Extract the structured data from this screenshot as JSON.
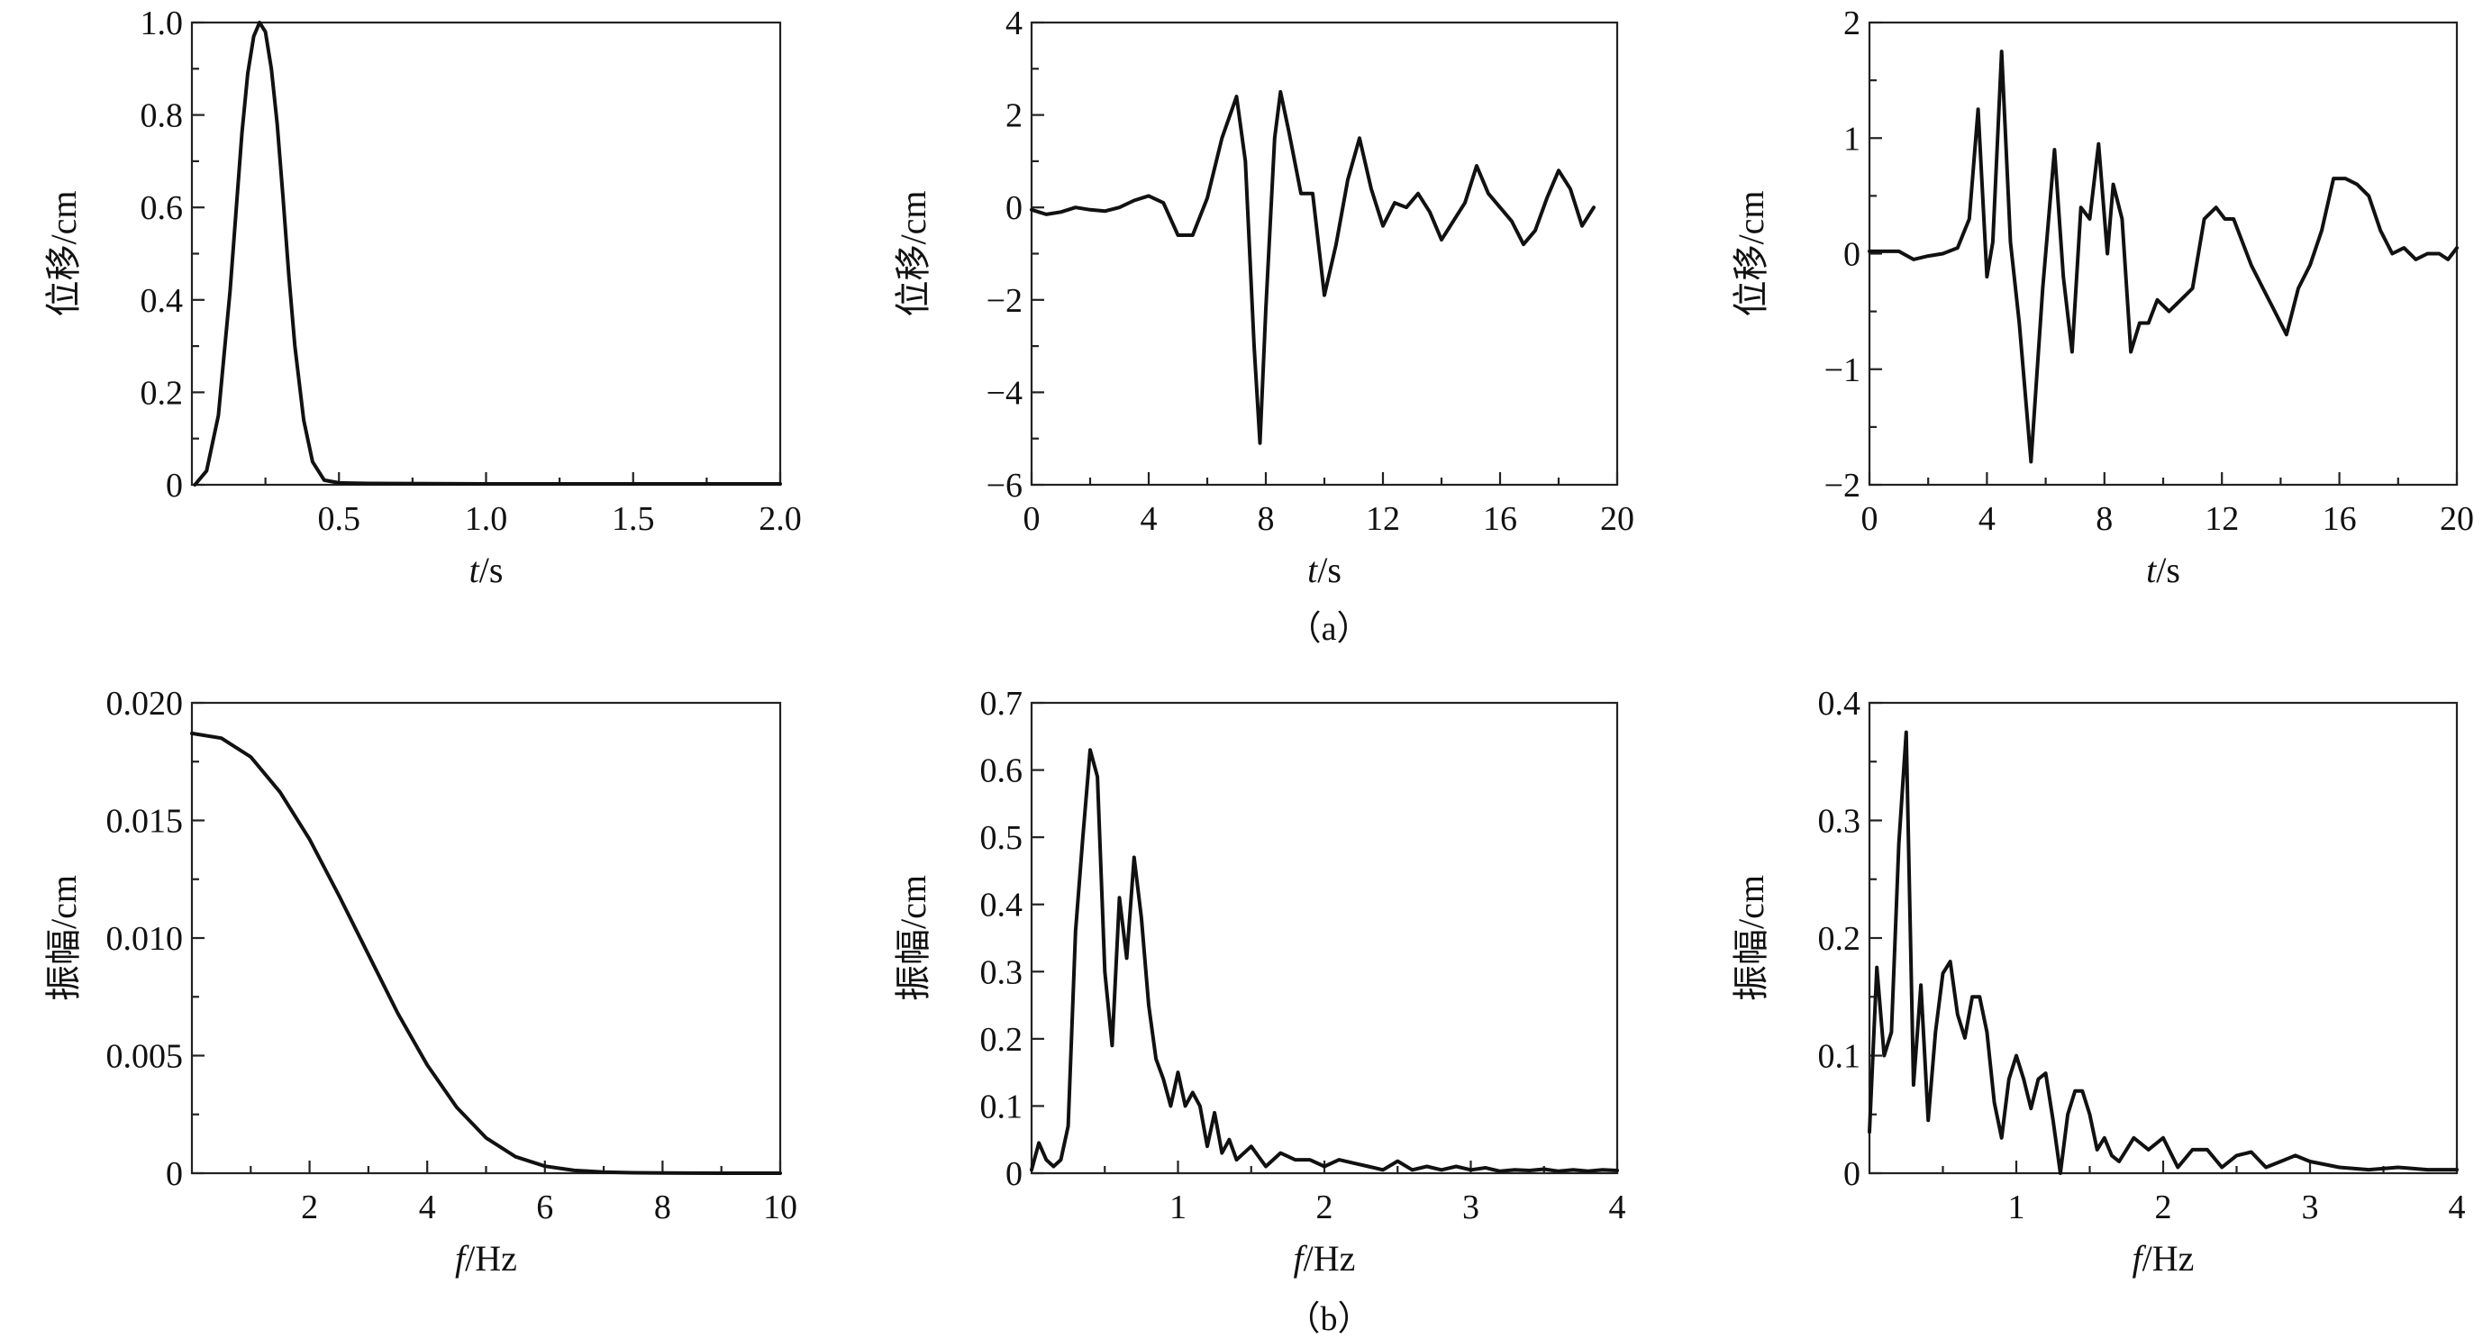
{
  "captions": {
    "a": "（a）",
    "b": "（b）"
  },
  "chart_data": [
    {
      "type": "line",
      "xlabel_var": "t",
      "xlabel_unit": "/s",
      "ylabel": "位移/cm",
      "xlim": [
        0,
        2.0
      ],
      "ylim": [
        0,
        1.0
      ],
      "xticks": [
        {
          "v": 0.5,
          "label": "0.5"
        },
        {
          "v": 1.0,
          "label": "1.0"
        },
        {
          "v": 1.5,
          "label": "1.5"
        },
        {
          "v": 2.0,
          "label": "2.0"
        }
      ],
      "xminor": [
        0.25,
        0.75,
        1.25,
        1.75
      ],
      "yticks": [
        {
          "v": 0,
          "label": "0"
        },
        {
          "v": 0.2,
          "label": "0.2"
        },
        {
          "v": 0.4,
          "label": "0.4"
        },
        {
          "v": 0.6,
          "label": "0.6"
        },
        {
          "v": 0.8,
          "label": "0.8"
        },
        {
          "v": 1.0,
          "label": "1.0"
        }
      ],
      "yminor": [
        0.1,
        0.3,
        0.5,
        0.7,
        0.9
      ],
      "x": [
        0.01,
        0.05,
        0.09,
        0.13,
        0.17,
        0.19,
        0.21,
        0.23,
        0.25,
        0.27,
        0.29,
        0.31,
        0.33,
        0.35,
        0.38,
        0.41,
        0.45,
        0.5,
        0.6,
        1.0,
        1.5,
        2.0
      ],
      "y": [
        0.0,
        0.03,
        0.15,
        0.42,
        0.76,
        0.89,
        0.97,
        1.0,
        0.98,
        0.9,
        0.78,
        0.62,
        0.45,
        0.3,
        0.14,
        0.05,
        0.01,
        0.004,
        0.003,
        0.002,
        0.002,
        0.002
      ]
    },
    {
      "type": "line",
      "xlabel_var": "t",
      "xlabel_unit": "/s",
      "ylabel": "位移/cm",
      "xlim": [
        0,
        20
      ],
      "ylim": [
        -6,
        4
      ],
      "xticks": [
        {
          "v": 0,
          "label": "0"
        },
        {
          "v": 4,
          "label": "4"
        },
        {
          "v": 8,
          "label": "8"
        },
        {
          "v": 12,
          "label": "12"
        },
        {
          "v": 16,
          "label": "16"
        },
        {
          "v": 20,
          "label": "20"
        }
      ],
      "xminor": [
        2,
        6,
        10,
        14,
        18
      ],
      "yticks": [
        {
          "v": -6,
          "label": "−6"
        },
        {
          "v": -4,
          "label": "−4"
        },
        {
          "v": -2,
          "label": "−2"
        },
        {
          "v": 0,
          "label": "0"
        },
        {
          "v": 2,
          "label": "2"
        },
        {
          "v": 4,
          "label": "4"
        }
      ],
      "yminor": [
        -5,
        -3,
        -1,
        1,
        3
      ],
      "x": [
        0,
        0.5,
        1,
        1.5,
        2,
        2.5,
        3,
        3.5,
        4,
        4.5,
        5,
        5.5,
        6,
        6.5,
        7,
        7.3,
        7.6,
        7.8,
        8,
        8.3,
        8.5,
        8.8,
        9.2,
        9.6,
        10,
        10.4,
        10.8,
        11.2,
        11.6,
        12,
        12.4,
        12.8,
        13.2,
        13.6,
        14,
        14.4,
        14.8,
        15.2,
        15.6,
        16,
        16.4,
        16.8,
        17.2,
        17.6,
        18,
        18.4,
        18.8,
        19.2
      ],
      "y": [
        -0.05,
        -0.15,
        -0.1,
        0.0,
        -0.05,
        -0.08,
        0.0,
        0.15,
        0.25,
        0.1,
        -0.6,
        -0.6,
        0.2,
        1.5,
        2.4,
        1.0,
        -3.0,
        -5.1,
        -2.2,
        1.5,
        2.5,
        1.6,
        0.3,
        0.3,
        -1.9,
        -0.8,
        0.6,
        1.5,
        0.4,
        -0.4,
        0.1,
        0.0,
        0.3,
        -0.1,
        -0.7,
        -0.3,
        0.1,
        0.9,
        0.3,
        0.0,
        -0.3,
        -0.8,
        -0.5,
        0.2,
        0.8,
        0.4,
        -0.4,
        0.0
      ]
    },
    {
      "type": "line",
      "xlabel_var": "t",
      "xlabel_unit": "/s",
      "ylabel": "位移/cm",
      "xlim": [
        0,
        20
      ],
      "ylim": [
        -2,
        2
      ],
      "xticks": [
        {
          "v": 0,
          "label": "0"
        },
        {
          "v": 4,
          "label": "4"
        },
        {
          "v": 8,
          "label": "8"
        },
        {
          "v": 12,
          "label": "12"
        },
        {
          "v": 16,
          "label": "16"
        },
        {
          "v": 20,
          "label": "20"
        }
      ],
      "xminor": [
        2,
        6,
        10,
        14,
        18
      ],
      "yticks": [
        {
          "v": -2,
          "label": "−2"
        },
        {
          "v": -1,
          "label": "−1"
        },
        {
          "v": 0,
          "label": "0"
        },
        {
          "v": 1,
          "label": "1"
        },
        {
          "v": 2,
          "label": "2"
        }
      ],
      "yminor": [
        -1.5,
        -0.5,
        0.5,
        1.5
      ],
      "x": [
        0,
        1,
        1.5,
        2,
        2.5,
        3,
        3.4,
        3.7,
        4.0,
        4.2,
        4.5,
        4.8,
        5.1,
        5.5,
        5.9,
        6.3,
        6.6,
        6.9,
        7.2,
        7.5,
        7.8,
        8.1,
        8.3,
        8.6,
        8.9,
        9.2,
        9.5,
        9.8,
        10.2,
        10.6,
        11,
        11.4,
        11.8,
        12.1,
        12.4,
        12.7,
        13,
        13.4,
        13.8,
        14.2,
        14.6,
        15,
        15.4,
        15.8,
        16.2,
        16.6,
        17,
        17.4,
        17.8,
        18.2,
        18.6,
        19,
        19.4,
        19.7,
        20
      ],
      "y": [
        0.02,
        0.02,
        -0.05,
        -0.02,
        0.0,
        0.05,
        0.3,
        1.25,
        -0.2,
        0.1,
        1.75,
        0.1,
        -0.6,
        -1.8,
        -0.3,
        0.9,
        -0.2,
        -0.85,
        0.4,
        0.3,
        0.95,
        0.0,
        0.6,
        0.3,
        -0.85,
        -0.6,
        -0.6,
        -0.4,
        -0.5,
        -0.4,
        -0.3,
        0.3,
        0.4,
        0.3,
        0.3,
        0.1,
        -0.1,
        -0.3,
        -0.5,
        -0.7,
        -0.3,
        -0.1,
        0.2,
        0.65,
        0.65,
        0.6,
        0.5,
        0.2,
        0.0,
        0.05,
        -0.05,
        0.0,
        0.0,
        -0.05,
        0.05
      ]
    },
    {
      "type": "line",
      "xlabel_var": "f",
      "xlabel_unit": "/Hz",
      "ylabel": "振幅/cm",
      "xlim": [
        0,
        10
      ],
      "ylim": [
        0,
        0.02
      ],
      "xticks": [
        {
          "v": 2,
          "label": "2"
        },
        {
          "v": 4,
          "label": "4"
        },
        {
          "v": 6,
          "label": "6"
        },
        {
          "v": 8,
          "label": "8"
        },
        {
          "v": 10,
          "label": "10"
        }
      ],
      "xminor": [
        1,
        3,
        5,
        7,
        9
      ],
      "yticks": [
        {
          "v": 0,
          "label": "0"
        },
        {
          "v": 0.005,
          "label": "0.005"
        },
        {
          "v": 0.01,
          "label": "0.010"
        },
        {
          "v": 0.015,
          "label": "0.015"
        },
        {
          "v": 0.02,
          "label": "0.020"
        }
      ],
      "yminor": [
        0.0025,
        0.0075,
        0.0125,
        0.0175
      ],
      "x": [
        0,
        0.5,
        1,
        1.5,
        2,
        2.5,
        3,
        3.5,
        4,
        4.5,
        5,
        5.5,
        6,
        6.5,
        7,
        7.5,
        8,
        9,
        10
      ],
      "y": [
        0.0187,
        0.0185,
        0.0177,
        0.0162,
        0.0142,
        0.0118,
        0.0093,
        0.0068,
        0.0046,
        0.0028,
        0.0015,
        0.0007,
        0.0003,
        0.00012,
        5e-05,
        2e-05,
        1e-05,
        0.0,
        0.0
      ]
    },
    {
      "type": "line",
      "xlabel_var": "f",
      "xlabel_unit": "/Hz",
      "ylabel": "振幅/cm",
      "xlim": [
        0,
        4
      ],
      "ylim": [
        0,
        0.7
      ],
      "xticks": [
        {
          "v": 1,
          "label": "1"
        },
        {
          "v": 2,
          "label": "2"
        },
        {
          "v": 3,
          "label": "3"
        },
        {
          "v": 4,
          "label": "4"
        }
      ],
      "xminor": [
        0.5,
        1.5,
        2.5,
        3.5
      ],
      "yticks": [
        {
          "v": 0,
          "label": "0"
        },
        {
          "v": 0.1,
          "label": "0.1"
        },
        {
          "v": 0.2,
          "label": "0.2"
        },
        {
          "v": 0.3,
          "label": "0.3"
        },
        {
          "v": 0.4,
          "label": "0.4"
        },
        {
          "v": 0.5,
          "label": "0.5"
        },
        {
          "v": 0.6,
          "label": "0.6"
        },
        {
          "v": 0.7,
          "label": "0.7"
        }
      ],
      "yminor": [],
      "x": [
        0,
        0.05,
        0.1,
        0.15,
        0.2,
        0.25,
        0.3,
        0.35,
        0.4,
        0.45,
        0.5,
        0.55,
        0.6,
        0.65,
        0.7,
        0.75,
        0.8,
        0.85,
        0.9,
        0.95,
        1.0,
        1.05,
        1.1,
        1.15,
        1.2,
        1.25,
        1.3,
        1.35,
        1.4,
        1.5,
        1.6,
        1.7,
        1.8,
        1.9,
        2.0,
        2.1,
        2.2,
        2.3,
        2.4,
        2.5,
        2.6,
        2.7,
        2.8,
        2.9,
        3.0,
        3.1,
        3.2,
        3.3,
        3.4,
        3.5,
        3.6,
        3.7,
        3.8,
        3.9,
        4.0
      ],
      "y": [
        0.005,
        0.045,
        0.02,
        0.01,
        0.02,
        0.07,
        0.36,
        0.5,
        0.63,
        0.59,
        0.3,
        0.19,
        0.41,
        0.32,
        0.47,
        0.38,
        0.25,
        0.17,
        0.14,
        0.1,
        0.15,
        0.1,
        0.12,
        0.1,
        0.04,
        0.09,
        0.03,
        0.05,
        0.02,
        0.04,
        0.01,
        0.03,
        0.02,
        0.02,
        0.01,
        0.02,
        0.015,
        0.01,
        0.005,
        0.018,
        0.005,
        0.01,
        0.005,
        0.01,
        0.005,
        0.008,
        0.003,
        0.005,
        0.004,
        0.006,
        0.003,
        0.005,
        0.003,
        0.005,
        0.004
      ]
    },
    {
      "type": "line",
      "xlabel_var": "f",
      "xlabel_unit": "/Hz",
      "ylabel": "振幅/cm",
      "xlim": [
        0,
        4
      ],
      "ylim": [
        0,
        0.4
      ],
      "xticks": [
        {
          "v": 1,
          "label": "1"
        },
        {
          "v": 2,
          "label": "2"
        },
        {
          "v": 3,
          "label": "3"
        },
        {
          "v": 4,
          "label": "4"
        }
      ],
      "xminor": [
        0.5,
        1.5,
        2.5,
        3.5
      ],
      "yticks": [
        {
          "v": 0,
          "label": "0"
        },
        {
          "v": 0.1,
          "label": "0.1"
        },
        {
          "v": 0.2,
          "label": "0.2"
        },
        {
          "v": 0.3,
          "label": "0.3"
        },
        {
          "v": 0.4,
          "label": "0.4"
        }
      ],
      "yminor": [
        0.05,
        0.15,
        0.25,
        0.35
      ],
      "x": [
        0,
        0.05,
        0.1,
        0.15,
        0.2,
        0.25,
        0.3,
        0.35,
        0.4,
        0.45,
        0.5,
        0.55,
        0.6,
        0.65,
        0.7,
        0.75,
        0.8,
        0.85,
        0.9,
        0.95,
        1.0,
        1.05,
        1.1,
        1.15,
        1.2,
        1.25,
        1.3,
        1.35,
        1.4,
        1.45,
        1.5,
        1.55,
        1.6,
        1.65,
        1.7,
        1.75,
        1.8,
        1.9,
        2.0,
        2.1,
        2.2,
        2.3,
        2.4,
        2.5,
        2.6,
        2.7,
        2.8,
        2.9,
        3.0,
        3.2,
        3.4,
        3.6,
        3.8,
        4.0
      ],
      "y": [
        0.035,
        0.175,
        0.1,
        0.12,
        0.28,
        0.375,
        0.075,
        0.16,
        0.045,
        0.12,
        0.17,
        0.18,
        0.135,
        0.115,
        0.15,
        0.15,
        0.12,
        0.06,
        0.03,
        0.08,
        0.1,
        0.08,
        0.055,
        0.08,
        0.085,
        0.045,
        0.0,
        0.05,
        0.07,
        0.07,
        0.05,
        0.02,
        0.03,
        0.015,
        0.01,
        0.02,
        0.03,
        0.02,
        0.03,
        0.005,
        0.02,
        0.02,
        0.005,
        0.015,
        0.018,
        0.005,
        0.01,
        0.015,
        0.01,
        0.005,
        0.003,
        0.005,
        0.003,
        0.003
      ]
    }
  ]
}
